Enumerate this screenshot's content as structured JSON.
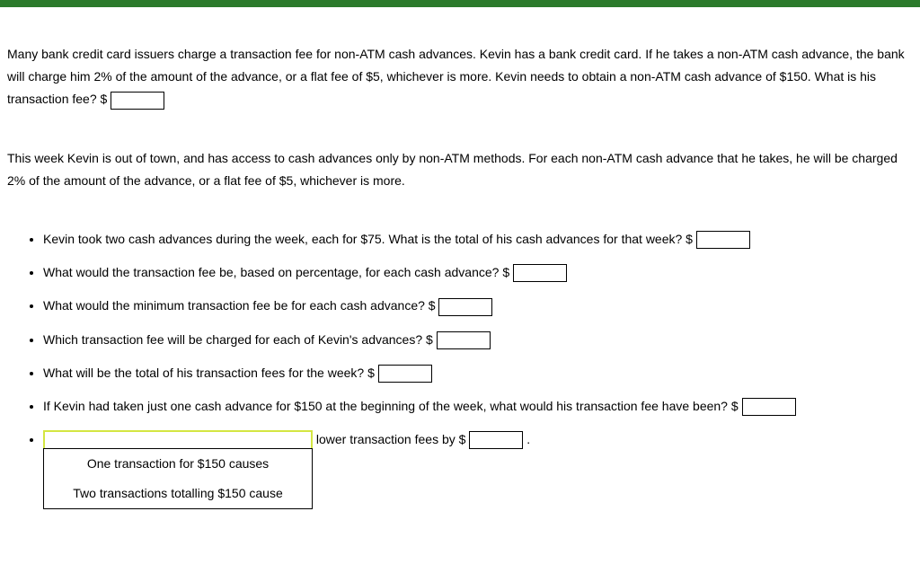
{
  "colors": {
    "top_bar": "#2b7a2b",
    "highlight_border": "#d4e642"
  },
  "intro": {
    "text_before_input": "Many bank credit card issuers charge a transaction fee for non-ATM cash advances. Kevin has a bank credit card. If he takes a non-ATM cash advance, the bank will charge him 2% of the amount of the advance, or a flat fee of $5, whichever is more. Kevin needs to obtain a non-ATM cash advance of $150. What is his transaction fee? $"
  },
  "scenario": {
    "text": "This week Kevin is out of town, and has access to cash advances only by non-ATM methods. For each non-ATM cash advance that he takes, he will be charged 2% of the amount of the advance, or a flat fee of $5, whichever is more."
  },
  "bullets": {
    "b1": "Kevin took two cash advances during the week, each for $75. What is the total of his cash advances for that week? $",
    "b2": "What would the transaction fee be, based on percentage, for each cash advance? $",
    "b3": "What would the minimum transaction fee be for each cash advance? $",
    "b4": "Which transaction fee will be charged for each of Kevin's advances? $",
    "b5": "What will be the total of his transaction fees for the week? $",
    "b6": "If Kevin had taken just one cash advance for $150 at the beginning of the week, what would his transaction fee have been? $",
    "b7_after": " lower transaction fees by $",
    "b7_period": "."
  },
  "dropdown": {
    "option1": "One transaction for $150 causes",
    "option2": "Two transactions totalling $150 cause"
  }
}
